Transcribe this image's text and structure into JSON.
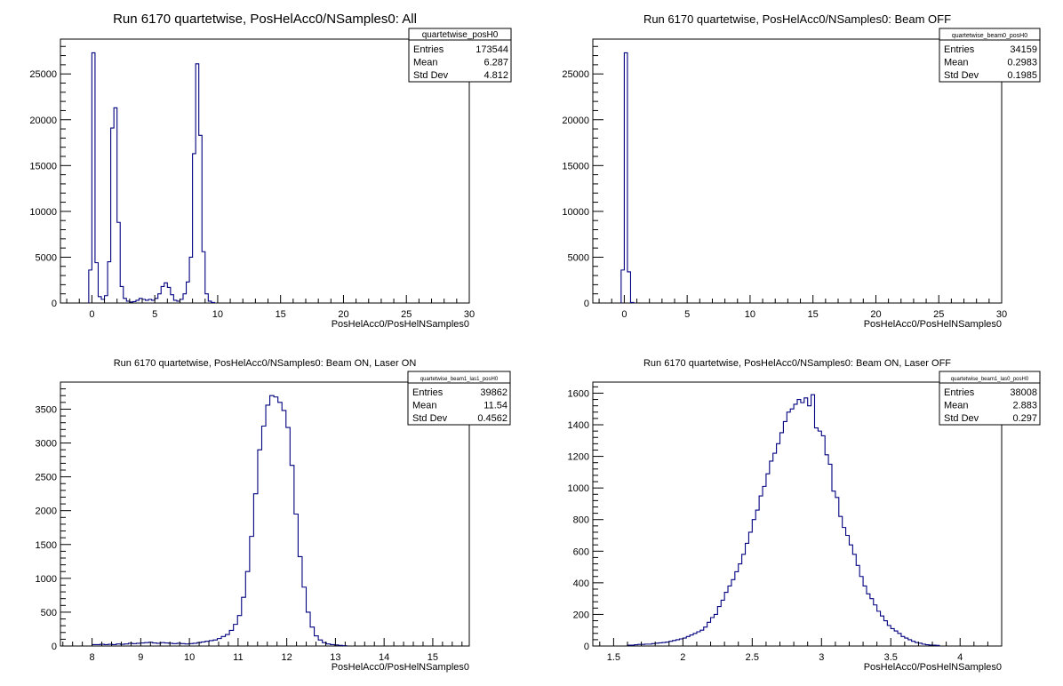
{
  "chart_data": [
    {
      "type": "histogram",
      "title": "Run 6170 quartetwise, PosHelAcc0/NSamples0: All",
      "xlabel": "PosHelAcc0/PosHelNSamples0",
      "xlim": [
        -2.5,
        30
      ],
      "ylim": [
        0,
        28800
      ],
      "xticks": [
        0,
        5,
        10,
        15,
        20,
        25,
        30
      ],
      "yticks": [
        0,
        5000,
        10000,
        15000,
        20000,
        25000
      ],
      "bin_width": 0.25,
      "x_start": -0.25,
      "values": [
        3600,
        27300,
        4400,
        700,
        400,
        800,
        4500,
        19100,
        21300,
        8800,
        1800,
        500,
        200,
        100,
        150,
        300,
        500,
        400,
        300,
        400,
        300,
        500,
        1000,
        1800,
        2200,
        1700,
        900,
        300,
        200,
        400,
        1000,
        2300,
        5000,
        16300,
        26100,
        18300,
        5600,
        1000,
        200,
        50
      ],
      "stats": {
        "name": "quartetwise_posH0",
        "rows": [
          {
            "label": "Entries",
            "value": "173544"
          },
          {
            "label": "Mean",
            "value": "6.287"
          },
          {
            "label": "Std Dev",
            "value": "4.812"
          }
        ]
      }
    },
    {
      "type": "histogram",
      "title": "Run 6170 quartetwise, PosHelAcc0/NSamples0: Beam OFF",
      "xlabel": "PosHelAcc0/PosHelNSamples0",
      "xlim": [
        -2.5,
        30
      ],
      "ylim": [
        0,
        28800
      ],
      "xticks": [
        0,
        5,
        10,
        15,
        20,
        25,
        30
      ],
      "yticks": [
        0,
        5000,
        10000,
        15000,
        20000,
        25000
      ],
      "bin_width": 0.25,
      "x_start": -0.25,
      "values": [
        3600,
        27300,
        3400,
        50
      ],
      "stats": {
        "name": "quartetwise_beam0_posH0",
        "rows": [
          {
            "label": "Entries",
            "value": "34159"
          },
          {
            "label": "Mean",
            "value": "0.2983"
          },
          {
            "label": "Std Dev",
            "value": "0.1985"
          }
        ]
      }
    },
    {
      "type": "histogram",
      "title": "Run 6170 quartetwise, PosHelAcc0/NSamples0: Beam ON, Laser ON",
      "xlabel": "PosHelAcc0/PosHelNSamples0",
      "xlim": [
        7.35,
        15.75
      ],
      "ylim": [
        0,
        3900
      ],
      "xticks": [
        8,
        9,
        10,
        11,
        12,
        13,
        14,
        15
      ],
      "yticks": [
        0,
        500,
        1000,
        1500,
        2000,
        2500,
        3000,
        3500
      ],
      "bin_width": 0.083,
      "x_start": 8.0,
      "values": [
        20,
        20,
        25,
        20,
        25,
        20,
        30,
        25,
        30,
        40,
        35,
        40,
        45,
        50,
        55,
        45,
        40,
        50,
        45,
        40,
        35,
        40,
        35,
        30,
        35,
        40,
        50,
        60,
        70,
        80,
        90,
        110,
        140,
        170,
        230,
        320,
        450,
        720,
        1100,
        1620,
        2250,
        2900,
        3250,
        3560,
        3700,
        3680,
        3600,
        3480,
        3230,
        2670,
        1950,
        1320,
        870,
        500,
        280,
        150,
        90,
        50,
        30,
        20,
        15,
        10,
        5
      ],
      "stats": {
        "name": "quartetwise_beam1_las1_posH0",
        "rows": [
          {
            "label": "Entries",
            "value": "39862"
          },
          {
            "label": "Mean",
            "value": "11.54"
          },
          {
            "label": "Std Dev",
            "value": "0.4562"
          }
        ]
      }
    },
    {
      "type": "histogram",
      "title": "Run 6170 quartetwise, PosHelAcc0/NSamples0: Beam ON, Laser OFF",
      "xlabel": "PosHelAcc0/PosHelNSamples0",
      "xlim": [
        1.35,
        4.3
      ],
      "ylim": [
        0,
        1670
      ],
      "xticks": [
        1.5,
        2,
        2.5,
        3,
        3.5,
        4
      ],
      "yticks": [
        0,
        200,
        400,
        600,
        800,
        1000,
        1200,
        1400,
        1600
      ],
      "bin_width": 0.025,
      "x_start": 1.6,
      "values": [
        5,
        5,
        8,
        10,
        10,
        12,
        12,
        15,
        18,
        20,
        22,
        25,
        30,
        35,
        40,
        45,
        50,
        60,
        70,
        80,
        90,
        100,
        120,
        150,
        180,
        200,
        250,
        290,
        340,
        380,
        420,
        470,
        520,
        580,
        650,
        720,
        800,
        860,
        950,
        1010,
        1090,
        1170,
        1220,
        1280,
        1350,
        1420,
        1480,
        1500,
        1530,
        1560,
        1540,
        1570,
        1520,
        1590,
        1380,
        1360,
        1330,
        1210,
        1150,
        980,
        940,
        820,
        750,
        700,
        640,
        580,
        510,
        440,
        380,
        330,
        300,
        260,
        220,
        190,
        160,
        130,
        110,
        95,
        80,
        60,
        50,
        40,
        30,
        22,
        18,
        12,
        8,
        6,
        5,
        4
      ],
      "stats": {
        "name": "quartetwise_beam1_las0_posH0",
        "rows": [
          {
            "label": "Entries",
            "value": "38008"
          },
          {
            "label": "Mean",
            "value": "2.883"
          },
          {
            "label": "Std Dev",
            "value": "0.297"
          }
        ]
      }
    }
  ]
}
